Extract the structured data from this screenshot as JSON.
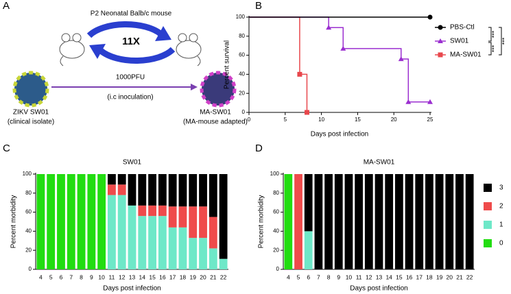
{
  "diagram": {
    "label": "A",
    "title": "P2 Neonatal Balb/c mouse",
    "cycles": "11X",
    "dose": "1000PFU",
    "route": "(i.c inoculation)",
    "source_name": "ZIKV SW01",
    "source_note": "(clinical isolate)",
    "target_name": "MA-SW01",
    "target_note": "(MA-mouse adapted)"
  },
  "chart_data": [
    {
      "label": "B",
      "type": "line",
      "xlabel": "Days post infection",
      "ylabel": "Percent survival",
      "xlim": [
        0,
        25
      ],
      "xticks": [
        0,
        5,
        10,
        15,
        20,
        25
      ],
      "ylim": [
        0,
        100
      ],
      "yticks": [
        0,
        20,
        40,
        60,
        80,
        100
      ],
      "step": true,
      "legend": "right",
      "series": [
        {
          "name": "PBS-Ctl",
          "color": "#000000",
          "marker": "circle",
          "x": [
            0,
            25
          ],
          "values": [
            100,
            100
          ]
        },
        {
          "name": "SW01",
          "color": "#9b2fd0",
          "marker": "triangle",
          "x": [
            0,
            11,
            13,
            21,
            22,
            25
          ],
          "values": [
            100,
            89,
            67,
            56,
            11,
            11
          ]
        },
        {
          "name": "MA-SW01",
          "color": "#e8474c",
          "marker": "square",
          "x": [
            0,
            7,
            8
          ],
          "values": [
            100,
            40,
            0
          ]
        }
      ],
      "annotations": [
        "***",
        "***",
        "***"
      ]
    },
    {
      "label": "C",
      "type": "stacked_bar",
      "title": "SW01",
      "xlabel": "Days post infection",
      "ylabel": "Percent morbidity",
      "ylim": [
        0,
        100
      ],
      "yticks": [
        0,
        20,
        40,
        60,
        80,
        100
      ],
      "categories": [
        "4",
        "5",
        "6",
        "7",
        "8",
        "9",
        "10",
        "11",
        "12",
        "13",
        "14",
        "15",
        "16",
        "17",
        "18",
        "19",
        "20",
        "21",
        "22"
      ],
      "series": [
        {
          "color": "#22dd11",
          "values": [
            100,
            100,
            100,
            100,
            100,
            100,
            100,
            0,
            0,
            0,
            0,
            0,
            0,
            0,
            0,
            0,
            0,
            0,
            0
          ]
        },
        {
          "color": "#6ee8c8",
          "values": [
            0,
            0,
            0,
            0,
            0,
            0,
            0,
            78,
            78,
            67,
            56,
            56,
            56,
            44,
            44,
            33,
            33,
            22,
            11
          ]
        },
        {
          "color": "#ef4b4b",
          "values": [
            0,
            0,
            0,
            0,
            0,
            0,
            0,
            11,
            11,
            0,
            11,
            11,
            11,
            22,
            22,
            33,
            33,
            33,
            0
          ]
        },
        {
          "color": "#000000",
          "values": [
            0,
            0,
            0,
            0,
            0,
            0,
            0,
            11,
            11,
            33,
            33,
            33,
            33,
            34,
            34,
            34,
            34,
            45,
            89
          ]
        }
      ]
    },
    {
      "label": "D",
      "type": "stacked_bar",
      "title": "MA-SW01",
      "xlabel": "Days post infection",
      "ylabel": "Percent morbidity",
      "ylim": [
        0,
        100
      ],
      "yticks": [
        0,
        20,
        40,
        60,
        80,
        100
      ],
      "legend": "right",
      "categories": [
        "4",
        "5",
        "6",
        "7",
        "8",
        "9",
        "10",
        "11",
        "12",
        "13",
        "14",
        "15",
        "16",
        "17",
        "18",
        "19",
        "20",
        "21",
        "22"
      ],
      "series": [
        {
          "name": "0",
          "color": "#22dd11",
          "values": [
            100,
            0,
            0,
            0,
            0,
            0,
            0,
            0,
            0,
            0,
            0,
            0,
            0,
            0,
            0,
            0,
            0,
            0,
            0
          ]
        },
        {
          "name": "1",
          "color": "#6ee8c8",
          "values": [
            0,
            0,
            40,
            0,
            0,
            0,
            0,
            0,
            0,
            0,
            0,
            0,
            0,
            0,
            0,
            0,
            0,
            0,
            0
          ]
        },
        {
          "name": "2",
          "color": "#ef4b4b",
          "values": [
            0,
            100,
            0,
            0,
            0,
            0,
            0,
            0,
            0,
            0,
            0,
            0,
            0,
            0,
            0,
            0,
            0,
            0,
            0
          ]
        },
        {
          "name": "3",
          "color": "#000000",
          "values": [
            0,
            0,
            60,
            100,
            100,
            100,
            100,
            100,
            100,
            100,
            100,
            100,
            100,
            100,
            100,
            100,
            100,
            100,
            100
          ]
        }
      ]
    }
  ]
}
